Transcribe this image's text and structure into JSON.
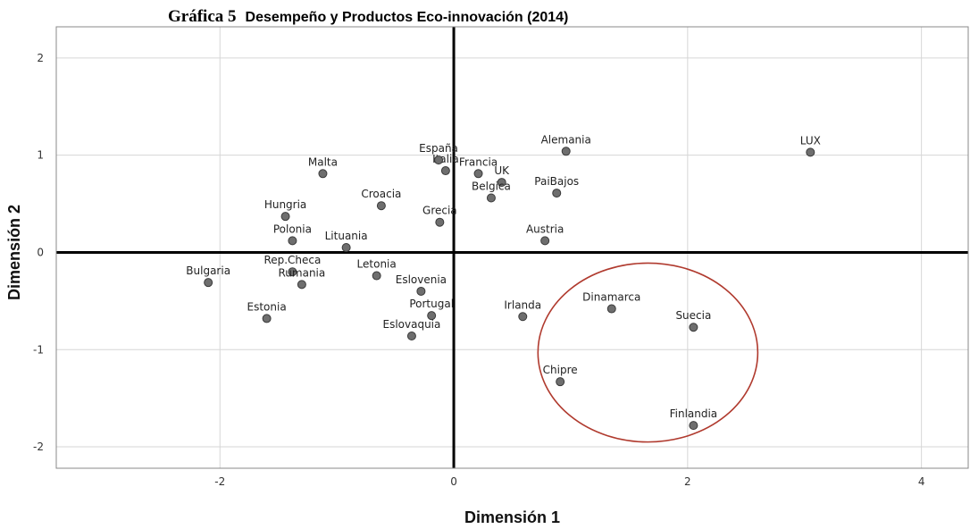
{
  "chart_data": {
    "type": "scatter",
    "title_lead": "Gráfica 5",
    "title": "Desempeño y Productos Eco-innovación (2014)",
    "xlabel": "Dimensión 1",
    "ylabel": "Dimensión 2",
    "xlim": [
      -3.4,
      4.4
    ],
    "ylim": [
      -2.22,
      2.32
    ],
    "xticks": [
      -2,
      0,
      2,
      4
    ],
    "yticks": [
      -2,
      -1,
      0,
      1,
      2
    ],
    "grid": true,
    "points": [
      {
        "name": "LUX",
        "x": 3.05,
        "y": 1.03
      },
      {
        "name": "Alemania",
        "x": 0.96,
        "y": 1.04
      },
      {
        "name": "Italia",
        "x": -0.07,
        "y": 0.84
      },
      {
        "name": "España",
        "x": -0.13,
        "y": 0.95
      },
      {
        "name": "Francia",
        "x": 0.21,
        "y": 0.81
      },
      {
        "name": "UK",
        "x": 0.41,
        "y": 0.72
      },
      {
        "name": "PaiBajos",
        "x": 0.88,
        "y": 0.61
      },
      {
        "name": "Belgica",
        "x": 0.32,
        "y": 0.56
      },
      {
        "name": "Malta",
        "x": -1.12,
        "y": 0.81
      },
      {
        "name": "Croacia",
        "x": -0.62,
        "y": 0.48
      },
      {
        "name": "Hungria",
        "x": -1.44,
        "y": 0.37
      },
      {
        "name": "Grecia",
        "x": -0.12,
        "y": 0.31
      },
      {
        "name": "Polonia",
        "x": -1.38,
        "y": 0.12
      },
      {
        "name": "Lituania",
        "x": -0.92,
        "y": 0.05
      },
      {
        "name": "Austria",
        "x": 0.78,
        "y": 0.12
      },
      {
        "name": "Bulgaria",
        "x": -2.1,
        "y": -0.31
      },
      {
        "name": "Rep.Checa",
        "x": -1.38,
        "y": -0.2
      },
      {
        "name": "Letonia",
        "x": -0.66,
        "y": -0.24
      },
      {
        "name": "Rumania",
        "x": -1.3,
        "y": -0.33
      },
      {
        "name": "Eslovenia",
        "x": -0.28,
        "y": -0.4
      },
      {
        "name": "Estonia",
        "x": -1.6,
        "y": -0.68
      },
      {
        "name": "Portugal",
        "x": -0.19,
        "y": -0.65
      },
      {
        "name": "Irlanda",
        "x": 0.59,
        "y": -0.66
      },
      {
        "name": "Dinamarca",
        "x": 1.35,
        "y": -0.58
      },
      {
        "name": "Eslovaquia",
        "x": -0.36,
        "y": -0.86
      },
      {
        "name": "Suecia",
        "x": 2.05,
        "y": -0.77
      },
      {
        "name": "Chipre",
        "x": 0.91,
        "y": -1.33
      },
      {
        "name": "Finlandia",
        "x": 2.05,
        "y": -1.78
      }
    ],
    "highlight_ellipse": {
      "cx": 1.66,
      "cy": -1.03,
      "rx": 0.94,
      "ry": 0.92,
      "color": "#b03a2e"
    }
  }
}
